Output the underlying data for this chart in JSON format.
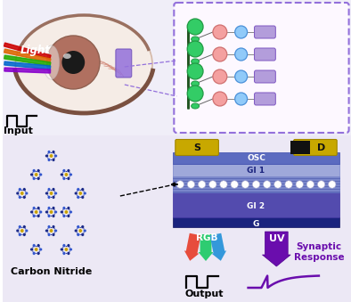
{
  "bg_color": "#ffffff",
  "label_input": "Input",
  "label_output": "Output",
  "label_carbon_nitride": "Carbon Nitride",
  "label_synaptic_response": "Synaptic\nResponse",
  "label_light": "Light",
  "label_osc": "OSC",
  "label_gi1": "GI 1",
  "label_gi2": "GI 2",
  "label_g": "G",
  "label_s": "S",
  "label_d": "D",
  "label_rgb": "RGB",
  "label_uv": "UV",
  "purple_dark": "#6a0dad",
  "purple_mid": "#9370DB",
  "purple_light": "#b39ddb",
  "blue_layer": "#7986CB",
  "blue_dark": "#3949AB",
  "gold_color": "#c8a800",
  "green_color": "#2ecc71",
  "red_color": "#e74c3c",
  "blue_color": "#3498db"
}
